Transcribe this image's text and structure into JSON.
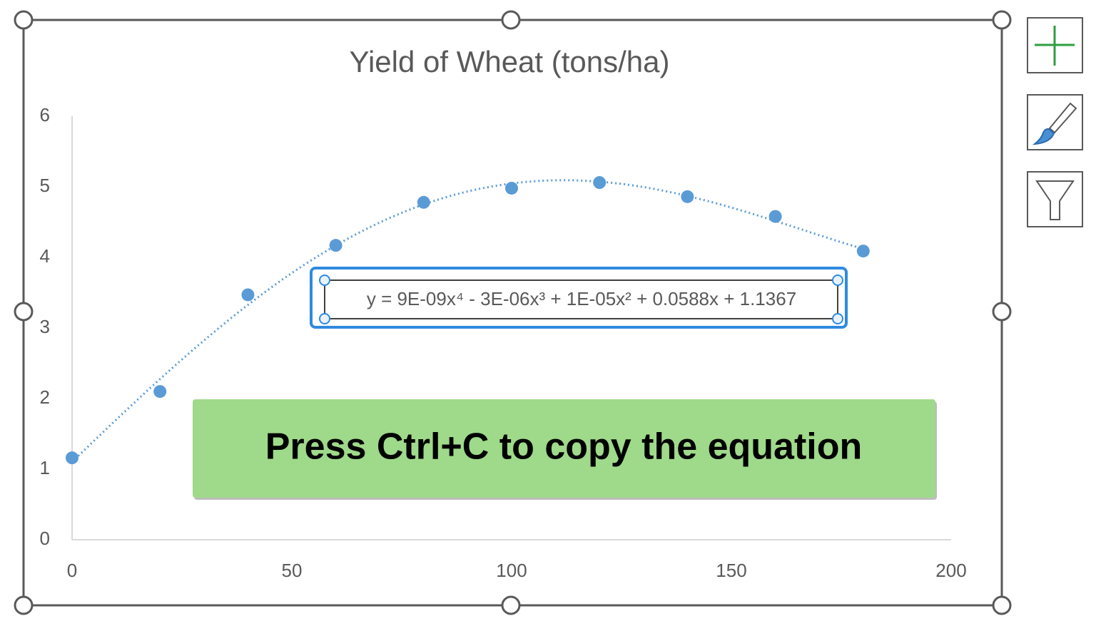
{
  "chart_data": {
    "type": "scatter",
    "title": "Yield of Wheat (tons/ha)",
    "x": [
      0,
      20,
      40,
      60,
      80,
      100,
      120,
      140,
      160,
      180
    ],
    "series": [
      {
        "color": "#5b9bd5",
        "values": [
          1.16,
          2.1,
          3.47,
          4.17,
          4.78,
          4.98,
          5.06,
          4.86,
          4.58,
          4.09
        ]
      }
    ],
    "xlim": [
      0,
      200
    ],
    "xticks": [
      0,
      50,
      100,
      150,
      200
    ],
    "ylim": [
      0,
      6
    ],
    "yticks": [
      0,
      1,
      2,
      3,
      4,
      5,
      6
    ],
    "grid": false,
    "trendline": {
      "type": "polynomial",
      "order": 4,
      "label": "y = 9E-09x⁴ - 3E-06x³ + 1E-05x² + 0.0588x + 1.1367"
    },
    "annotation": "Press Ctrl+C to copy the equation"
  }
}
